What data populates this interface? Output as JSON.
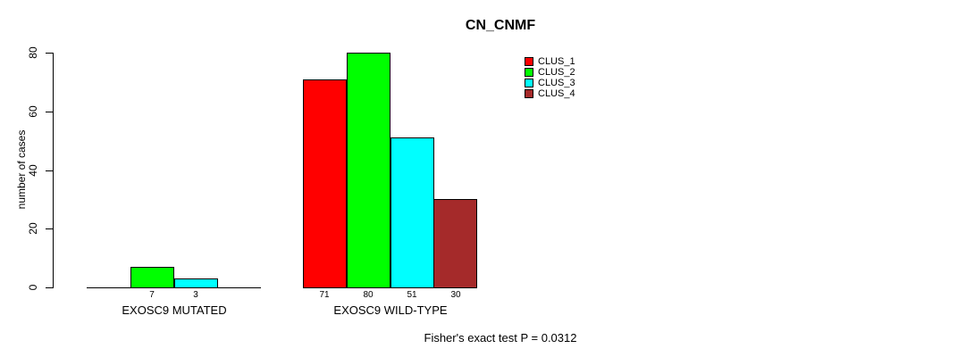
{
  "chart_data": {
    "type": "bar",
    "grouped": true,
    "title": "CN_CNMF",
    "ylabel": "number of cases",
    "xlabel": "",
    "categories": [
      "EXOSC9 MUTATED",
      "EXOSC9 WILD-TYPE"
    ],
    "series": [
      {
        "name": "CLUS_1",
        "color": "#FF0000",
        "values": [
          0,
          71
        ]
      },
      {
        "name": "CLUS_2",
        "color": "#00FF00",
        "values": [
          7,
          80
        ]
      },
      {
        "name": "CLUS_3",
        "color": "#00FFFF",
        "values": [
          3,
          51
        ]
      },
      {
        "name": "CLUS_4",
        "color": "#A52A2A",
        "values": [
          0,
          30
        ]
      }
    ],
    "bar_value_labels_shown_for_nonzero_only": true,
    "yticks": [
      0,
      20,
      40,
      60,
      80
    ],
    "ylim": [
      0,
      80
    ],
    "grid": false,
    "legend_position": "top-right",
    "legend_entries": [
      "CLUS_1",
      "CLUS_2",
      "CLUS_3",
      "CLUS_4"
    ],
    "footnote": "Fisher's exact test P = 0.0312",
    "colors": {
      "background": "#FFFFFF",
      "axis": "#000000",
      "text": "#000000"
    }
  }
}
